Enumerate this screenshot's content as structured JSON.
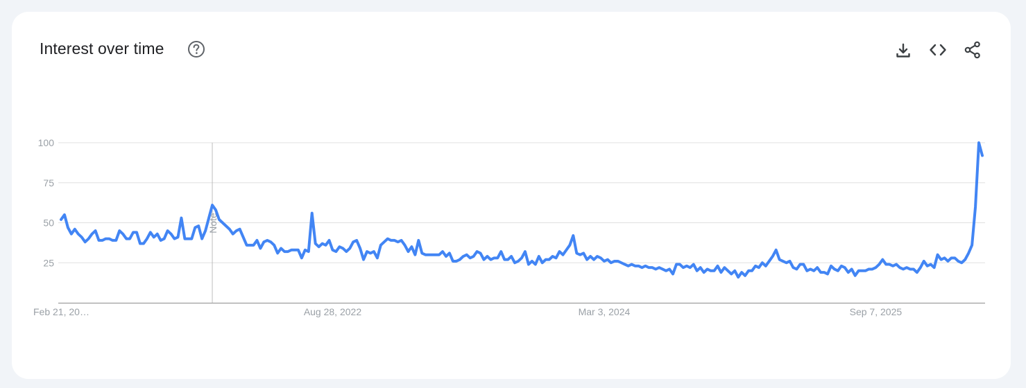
{
  "header": {
    "title": "Interest over time",
    "help_icon": "help-circle-icon",
    "actions": [
      {
        "name": "download",
        "icon": "download-icon"
      },
      {
        "name": "embed",
        "icon": "code-icon"
      },
      {
        "name": "share",
        "icon": "share-icon"
      }
    ]
  },
  "colors": {
    "line": "#4285f4",
    "grid": "#e0e0e0",
    "axis": "#9e9e9e",
    "tick_text": "#9aa0a6",
    "background": "#f1f4f8",
    "card": "#ffffff"
  },
  "chart_data": {
    "type": "line",
    "title": "",
    "xlabel": "",
    "ylabel": "",
    "ylim": [
      0,
      100
    ],
    "y_ticks": [
      25,
      50,
      75,
      100
    ],
    "x_tick_labels": [
      "Feb 21, 20…",
      "Aug 28, 2022",
      "Mar 3, 2024",
      "Sep 7, 2025"
    ],
    "x_tick_indices": [
      0,
      79,
      158,
      237
    ],
    "annotation": {
      "label": "Note",
      "index": 44
    },
    "grid": true,
    "series": [
      {
        "values": [
          52,
          55,
          47,
          43,
          46,
          43,
          41,
          38,
          40,
          43,
          45,
          39,
          39,
          40,
          40,
          39,
          39,
          45,
          43,
          40,
          40,
          44,
          44,
          37,
          37,
          40,
          44,
          41,
          43,
          39,
          40,
          45,
          43,
          40,
          41,
          53,
          40,
          40,
          40,
          47,
          48,
          40,
          45,
          53,
          61,
          58,
          52,
          50,
          48,
          46,
          43,
          45,
          46,
          41,
          36,
          36,
          36,
          39,
          34,
          38,
          39,
          38,
          36,
          31,
          34,
          32,
          32,
          33,
          33,
          33,
          28,
          33,
          32,
          56,
          37,
          35,
          37,
          36,
          39,
          33,
          32,
          35,
          34,
          32,
          34,
          38,
          39,
          34,
          27,
          32,
          31,
          32,
          28,
          36,
          38,
          40,
          39,
          39,
          38,
          39,
          36,
          32,
          35,
          30,
          39,
          31,
          30,
          30,
          30,
          30,
          30,
          32,
          29,
          31,
          26,
          26,
          27,
          29,
          30,
          28,
          29,
          32,
          31,
          27,
          29,
          27,
          28,
          28,
          32,
          27,
          27,
          29,
          25,
          26,
          28,
          32,
          24,
          26,
          24,
          29,
          25,
          27,
          27,
          29,
          28,
          32,
          30,
          33,
          36,
          42,
          31,
          30,
          31,
          27,
          29,
          27,
          29,
          28,
          26,
          27,
          25,
          26,
          26,
          25,
          24,
          23,
          24,
          23,
          23,
          22,
          23,
          22,
          22,
          21,
          22,
          21,
          20,
          21,
          18,
          24,
          24,
          22,
          23,
          22,
          24,
          20,
          22,
          19,
          21,
          20,
          20,
          23,
          19,
          22,
          20,
          18,
          20,
          16,
          19,
          17,
          20,
          20,
          23,
          22,
          25,
          23,
          26,
          29,
          33,
          27,
          26,
          25,
          26,
          22,
          21,
          24,
          24,
          20,
          21,
          20,
          22,
          19,
          19,
          18,
          23,
          21,
          20,
          23,
          22,
          19,
          21,
          17,
          20,
          20,
          20,
          21,
          21,
          22,
          24,
          27,
          24,
          24,
          23,
          24,
          22,
          21,
          22,
          21,
          21,
          19,
          22,
          26,
          23,
          24,
          22,
          30,
          27,
          28,
          26,
          28,
          28,
          26,
          25,
          27,
          31,
          36,
          60,
          100,
          92
        ]
      }
    ]
  }
}
